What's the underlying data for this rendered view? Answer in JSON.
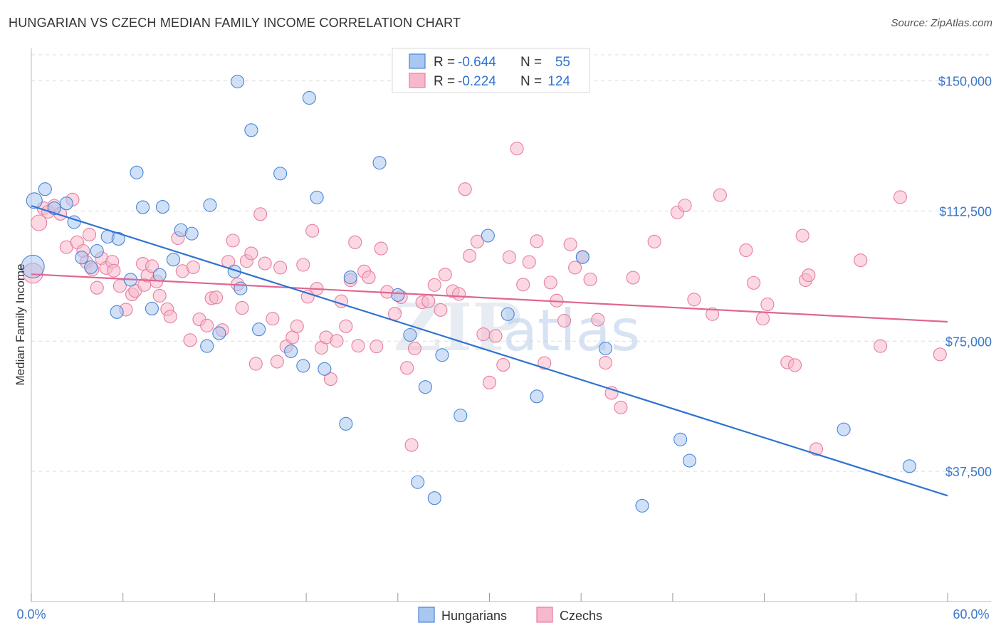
{
  "header": {
    "title": "HUNGARIAN VS CZECH MEDIAN FAMILY INCOME CORRELATION CHART",
    "source": "Source: ZipAtlas.com"
  },
  "watermark": {
    "zip": "ZIP",
    "atlas": "atlas"
  },
  "legend": {
    "series": [
      {
        "r_label": "R =",
        "r_value": "-0.644",
        "n_label": "N =",
        "n_value": "55"
      },
      {
        "r_label": "R =",
        "r_value": "-0.224",
        "n_label": "N =",
        "n_value": "124"
      }
    ]
  },
  "colors": {
    "hungarians_fill": "#a9c7f0",
    "hungarians_stroke": "#4a86d4",
    "hungarians_line": "#2f73d0",
    "czechs_fill": "#f7b8cb",
    "czechs_stroke": "#e57fa0",
    "czechs_line": "#e06690",
    "tick_text": "#3a78c9",
    "grid": "#dddddd"
  },
  "chart_data": {
    "type": "scatter",
    "title": "HUNGARIAN VS CZECH MEDIAN FAMILY INCOME CORRELATION CHART",
    "xlabel": "",
    "ylabel": "Median Family Income",
    "xlim": [
      0,
      60
    ],
    "ylim": [
      0,
      157500
    ],
    "x_tick_labels": [
      "0.0%",
      "60.0%"
    ],
    "y_ticks": [
      37500,
      75000,
      112500,
      150000
    ],
    "y_tick_labels": [
      "$37,500",
      "$75,000",
      "$112,500",
      "$150,000"
    ],
    "grid": true,
    "legend_position": "top-center",
    "series": [
      {
        "name": "Hungarians",
        "r": -0.644,
        "n": 55,
        "trend": {
          "x": [
            0,
            60
          ],
          "y": [
            114000,
            30500
          ]
        },
        "points": [
          [
            0.1,
            96500,
            16
          ],
          [
            0.2,
            115500,
            11
          ],
          [
            0.9,
            118800,
            9
          ],
          [
            1.5,
            113300,
            9
          ],
          [
            2.3,
            114700,
            9
          ],
          [
            2.8,
            109300,
            9
          ],
          [
            3.3,
            99100,
            9
          ],
          [
            3.9,
            96300,
            9
          ],
          [
            4.3,
            101000,
            9
          ],
          [
            5.0,
            105100,
            9
          ],
          [
            5.6,
            83400,
            9
          ],
          [
            5.7,
            104500,
            9
          ],
          [
            6.5,
            92700,
            9
          ],
          [
            6.9,
            123600,
            9
          ],
          [
            7.3,
            113600,
            9
          ],
          [
            7.9,
            84400,
            9
          ],
          [
            8.4,
            94100,
            9
          ],
          [
            8.6,
            113700,
            9
          ],
          [
            9.3,
            98500,
            9
          ],
          [
            9.8,
            107000,
            9
          ],
          [
            10.5,
            106000,
            9
          ],
          [
            11.5,
            73600,
            9
          ],
          [
            11.7,
            114200,
            9
          ],
          [
            12.3,
            77300,
            9
          ],
          [
            13.3,
            95100,
            9
          ],
          [
            13.5,
            149800,
            9
          ],
          [
            13.7,
            90200,
            9
          ],
          [
            14.4,
            135800,
            9
          ],
          [
            14.9,
            78400,
            9
          ],
          [
            16.3,
            123300,
            9
          ],
          [
            17.0,
            72100,
            9
          ],
          [
            17.8,
            67900,
            9
          ],
          [
            18.2,
            145100,
            9
          ],
          [
            18.7,
            116400,
            9
          ],
          [
            19.2,
            67000,
            9
          ],
          [
            20.6,
            51200,
            9
          ],
          [
            20.9,
            93400,
            9
          ],
          [
            22.8,
            126400,
            9
          ],
          [
            24.0,
            88300,
            9
          ],
          [
            24.8,
            76800,
            9
          ],
          [
            25.3,
            34400,
            9
          ],
          [
            25.8,
            61800,
            9
          ],
          [
            26.4,
            29800,
            9
          ],
          [
            26.9,
            71000,
            9
          ],
          [
            28.1,
            53600,
            9
          ],
          [
            29.9,
            105400,
            9
          ],
          [
            31.2,
            82800,
            9
          ],
          [
            33.1,
            59100,
            9
          ],
          [
            36.1,
            99200,
            9
          ],
          [
            37.6,
            72900,
            9
          ],
          [
            40.0,
            27600,
            9
          ],
          [
            42.5,
            46700,
            9
          ],
          [
            43.1,
            40600,
            9
          ],
          [
            53.2,
            49600,
            9
          ],
          [
            57.5,
            39000,
            9
          ]
        ]
      },
      {
        "name": "Czechs",
        "r": -0.224,
        "n": 124,
        "trend": {
          "x": [
            0,
            60
          ],
          "y": [
            94300,
            80600
          ]
        },
        "points": [
          [
            0.1,
            94600,
            14
          ],
          [
            0.5,
            109100,
            11
          ],
          [
            0.8,
            113300,
            9
          ],
          [
            1.1,
            112300,
            9
          ],
          [
            1.5,
            114000,
            9
          ],
          [
            1.9,
            111700,
            9
          ],
          [
            2.3,
            102100,
            9
          ],
          [
            2.7,
            115800,
            9
          ],
          [
            3.0,
            103500,
            9
          ],
          [
            3.4,
            101000,
            9
          ],
          [
            3.6,
            97800,
            9
          ],
          [
            3.8,
            105700,
            9
          ],
          [
            4.0,
            95700,
            9
          ],
          [
            4.3,
            90400,
            9
          ],
          [
            4.6,
            98900,
            9
          ],
          [
            4.9,
            96100,
            9
          ],
          [
            5.3,
            97900,
            9
          ],
          [
            5.4,
            95300,
            9
          ],
          [
            5.8,
            90900,
            9
          ],
          [
            6.2,
            84100,
            9
          ],
          [
            6.6,
            88500,
            9
          ],
          [
            6.8,
            89500,
            9
          ],
          [
            7.3,
            97300,
            9
          ],
          [
            7.4,
            91200,
            9
          ],
          [
            7.6,
            93900,
            9
          ],
          [
            7.9,
            96600,
            9
          ],
          [
            8.2,
            92200,
            9
          ],
          [
            8.4,
            88100,
            9
          ],
          [
            8.9,
            84200,
            9
          ],
          [
            9.1,
            82100,
            9
          ],
          [
            9.6,
            104700,
            9
          ],
          [
            9.9,
            95200,
            9
          ],
          [
            10.4,
            75300,
            9
          ],
          [
            10.6,
            96300,
            9
          ],
          [
            11.0,
            81300,
            9
          ],
          [
            11.5,
            79500,
            9
          ],
          [
            11.8,
            87400,
            9
          ],
          [
            12.1,
            87600,
            9
          ],
          [
            12.5,
            78200,
            9
          ],
          [
            12.9,
            97900,
            9
          ],
          [
            13.2,
            104000,
            9
          ],
          [
            13.5,
            91400,
            9
          ],
          [
            13.8,
            84600,
            9
          ],
          [
            14.1,
            98100,
            9
          ],
          [
            14.4,
            100300,
            9
          ],
          [
            14.7,
            68500,
            9
          ],
          [
            15.0,
            111600,
            9
          ],
          [
            15.3,
            97400,
            9
          ],
          [
            15.8,
            81500,
            9
          ],
          [
            16.1,
            69100,
            9
          ],
          [
            16.3,
            96200,
            9
          ],
          [
            16.7,
            73500,
            9
          ],
          [
            17.1,
            76100,
            9
          ],
          [
            17.4,
            79300,
            9
          ],
          [
            17.8,
            97000,
            9
          ],
          [
            18.1,
            87800,
            9
          ],
          [
            18.4,
            106800,
            9
          ],
          [
            18.7,
            90100,
            9
          ],
          [
            19.0,
            73100,
            9
          ],
          [
            19.3,
            76100,
            9
          ],
          [
            19.6,
            64100,
            9
          ],
          [
            20.0,
            75100,
            9
          ],
          [
            20.3,
            86500,
            9
          ],
          [
            20.6,
            79300,
            9
          ],
          [
            20.9,
            92600,
            9
          ],
          [
            21.2,
            103500,
            9
          ],
          [
            21.4,
            73700,
            9
          ],
          [
            21.8,
            95100,
            9
          ],
          [
            22.1,
            93400,
            9
          ],
          [
            22.6,
            73500,
            9
          ],
          [
            22.9,
            101700,
            9
          ],
          [
            23.3,
            89200,
            9
          ],
          [
            23.8,
            82900,
            9
          ],
          [
            24.2,
            87700,
            9
          ],
          [
            24.6,
            67300,
            9
          ],
          [
            24.9,
            45100,
            9
          ],
          [
            25.1,
            72900,
            9
          ],
          [
            25.6,
            86200,
            9
          ],
          [
            26.0,
            86500,
            9
          ],
          [
            26.4,
            91200,
            9
          ],
          [
            26.8,
            84000,
            9
          ],
          [
            27.1,
            94200,
            9
          ],
          [
            27.6,
            89400,
            9
          ],
          [
            28.0,
            88600,
            9
          ],
          [
            28.4,
            118800,
            9
          ],
          [
            28.7,
            99600,
            9
          ],
          [
            29.2,
            103700,
            9
          ],
          [
            29.6,
            77000,
            9
          ],
          [
            30.0,
            63100,
            9
          ],
          [
            30.4,
            76500,
            9
          ],
          [
            30.9,
            68200,
            9
          ],
          [
            31.3,
            99200,
            9
          ],
          [
            31.8,
            130500,
            9
          ],
          [
            32.2,
            91300,
            9
          ],
          [
            32.6,
            97800,
            9
          ],
          [
            33.1,
            103800,
            9
          ],
          [
            33.6,
            68700,
            9
          ],
          [
            34.0,
            91900,
            9
          ],
          [
            34.4,
            86700,
            9
          ],
          [
            34.9,
            80900,
            9
          ],
          [
            35.3,
            102900,
            9
          ],
          [
            35.6,
            96200,
            9
          ],
          [
            36.1,
            99300,
            9
          ],
          [
            36.6,
            92800,
            9
          ],
          [
            37.1,
            81200,
            9
          ],
          [
            37.6,
            68800,
            9
          ],
          [
            38.0,
            60100,
            9
          ],
          [
            38.6,
            55900,
            9
          ],
          [
            39.4,
            93300,
            9
          ],
          [
            40.8,
            103700,
            9
          ],
          [
            42.3,
            112100,
            9
          ],
          [
            42.8,
            114100,
            9
          ],
          [
            43.4,
            87000,
            9
          ],
          [
            44.6,
            82800,
            9
          ],
          [
            45.1,
            117100,
            9
          ],
          [
            46.8,
            101200,
            9
          ],
          [
            47.3,
            91800,
            9
          ],
          [
            47.9,
            81500,
            9
          ],
          [
            48.2,
            85600,
            9
          ],
          [
            49.5,
            68900,
            9
          ],
          [
            50.0,
            68100,
            9
          ],
          [
            50.5,
            105400,
            9
          ],
          [
            50.7,
            92600,
            9
          ],
          [
            50.9,
            94000,
            9
          ],
          [
            51.4,
            43900,
            9
          ],
          [
            54.3,
            98300,
            9
          ],
          [
            55.6,
            73600,
            9
          ],
          [
            56.9,
            116500,
            9
          ],
          [
            59.5,
            71200,
            9
          ]
        ]
      }
    ]
  },
  "bottom_legend": {
    "items": [
      {
        "label": "Hungarians"
      },
      {
        "label": "Czechs"
      }
    ]
  }
}
